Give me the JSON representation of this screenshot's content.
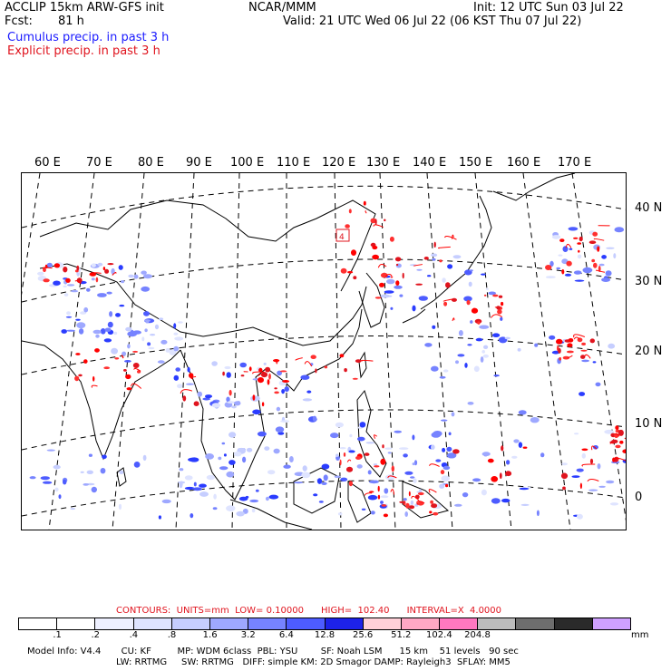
{
  "header": {
    "model_title": "ACCLIP 15km ARW-GFS init",
    "center": "NCAR/MMM",
    "init": "Init: 12 UTC Sun 03 Jul 22",
    "fcst_label": "Fcst:",
    "fcst_value": "81 h",
    "valid": "Valid: 21 UTC Wed 06 Jul 22 (06 KST Thu 07 Jul 22)",
    "legend_cumulus": "Cumulus precip. in past 3 h",
    "legend_explicit": "Explicit precip. in past 3 h"
  },
  "map": {
    "lon_labels": [
      "60 E",
      "70 E",
      "80 E",
      "90 E",
      "100 E",
      "110 E",
      "120 E",
      "130 E",
      "140 E",
      "150 E",
      "160 E",
      "170 E"
    ],
    "lat_labels": [
      "40 N",
      "30 N",
      "20 N",
      "10 N",
      "0"
    ],
    "box_label": "4",
    "colors": {
      "cumulus": "#2a3cff",
      "explicit": "#ff0000",
      "coast": "#000000"
    }
  },
  "contours": {
    "text": "CONTOURS:  UNITS=mm  LOW= 0.10000      HIGH=  102.40      INTERVAL=X  4.0000"
  },
  "colorbar": {
    "colors": [
      "#ffffff",
      "#ffffff",
      "#eef0ff",
      "#dfe4ff",
      "#c6ceff",
      "#9ea8ff",
      "#7683ff",
      "#4d5cff",
      "#1d22e8",
      "#ffd0d8",
      "#ffa8c4",
      "#ff78c0",
      "#bdbdbd",
      "#6e6e6e",
      "#2a2a2a",
      "#cfa0ff"
    ],
    "labels": [
      ".1",
      ".2",
      ".4",
      ".8",
      "1.6",
      "3.2",
      "6.4",
      "12.8",
      "25.6",
      "51.2",
      "102.4",
      "204.8"
    ],
    "units": "mm"
  },
  "footer": {
    "line1": "Model Info: V4.4       CU: KF         MP: WDM 6class  PBL: YSU        SF: Noah LSM      15 km    51 levels   90 sec",
    "line2": "LW: RRTMG     SW: RRTMG   DIFF: simple KM: 2D Smagor DAMP: Rayleigh3  SFLAY: MM5"
  }
}
